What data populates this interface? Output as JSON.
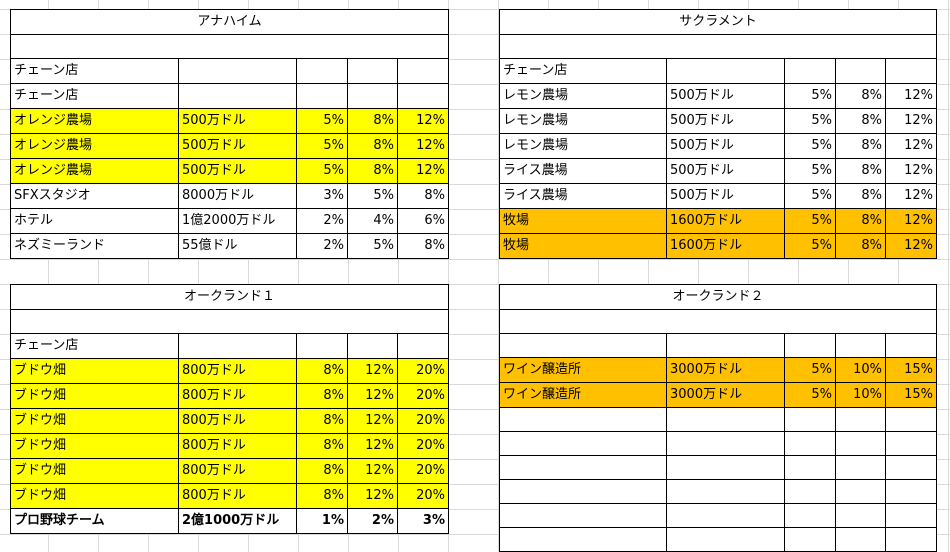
{
  "sheets": {
    "anaheim": {
      "title": "アナハイム",
      "label_rows": [
        "チェーン店",
        "チェーン店"
      ],
      "rows": [
        {
          "name": "オレンジ農場",
          "price": "500万ドル",
          "p1": "5%",
          "p2": "8%",
          "p3": "12%",
          "highlight": "yellow",
          "bold": false
        },
        {
          "name": "オレンジ農場",
          "price": "500万ドル",
          "p1": "5%",
          "p2": "8%",
          "p3": "12%",
          "highlight": "yellow",
          "bold": false
        },
        {
          "name": "オレンジ農場",
          "price": "500万ドル",
          "p1": "5%",
          "p2": "8%",
          "p3": "12%",
          "highlight": "yellow",
          "bold": false
        },
        {
          "name": "SFXスタジオ",
          "price": "8000万ドル",
          "p1": "3%",
          "p2": "5%",
          "p3": "8%",
          "highlight": "",
          "bold": false
        },
        {
          "name": "ホテル",
          "price": "1億2000万ドル",
          "p1": "2%",
          "p2": "4%",
          "p3": "6%",
          "highlight": "",
          "bold": false
        },
        {
          "name": "ネズミーランド",
          "price": "55億ドル",
          "p1": "2%",
          "p2": "5%",
          "p3": "8%",
          "highlight": "",
          "bold": false
        }
      ]
    },
    "sacramento": {
      "title": "サクラメント",
      "label_rows": [
        "チェーン店"
      ],
      "rows": [
        {
          "name": "レモン農場",
          "price": "500万ドル",
          "p1": "5%",
          "p2": "8%",
          "p3": "12%",
          "highlight": "",
          "bold": false
        },
        {
          "name": "レモン農場",
          "price": "500万ドル",
          "p1": "5%",
          "p2": "8%",
          "p3": "12%",
          "highlight": "",
          "bold": false
        },
        {
          "name": "レモン農場",
          "price": "500万ドル",
          "p1": "5%",
          "p2": "8%",
          "p3": "12%",
          "highlight": "",
          "bold": false
        },
        {
          "name": "ライス農場",
          "price": "500万ドル",
          "p1": "5%",
          "p2": "8%",
          "p3": "12%",
          "highlight": "",
          "bold": false
        },
        {
          "name": "ライス農場",
          "price": "500万ドル",
          "p1": "5%",
          "p2": "8%",
          "p3": "12%",
          "highlight": "",
          "bold": false
        },
        {
          "name": "牧場",
          "price": "1600万ドル",
          "p1": "5%",
          "p2": "8%",
          "p3": "12%",
          "highlight": "orange",
          "bold": false
        },
        {
          "name": "牧場",
          "price": "1600万ドル",
          "p1": "5%",
          "p2": "8%",
          "p3": "12%",
          "highlight": "orange",
          "bold": false
        }
      ]
    },
    "oakland1": {
      "title": "オークランド１",
      "label_rows": [
        "チェーン店"
      ],
      "rows": [
        {
          "name": "ブドウ畑",
          "price": "800万ドル",
          "p1": "8%",
          "p2": "12%",
          "p3": "20%",
          "highlight": "yellow",
          "bold": false
        },
        {
          "name": "ブドウ畑",
          "price": "800万ドル",
          "p1": "8%",
          "p2": "12%",
          "p3": "20%",
          "highlight": "yellow",
          "bold": false
        },
        {
          "name": "ブドウ畑",
          "price": "800万ドル",
          "p1": "8%",
          "p2": "12%",
          "p3": "20%",
          "highlight": "yellow",
          "bold": false
        },
        {
          "name": "ブドウ畑",
          "price": "800万ドル",
          "p1": "8%",
          "p2": "12%",
          "p3": "20%",
          "highlight": "yellow",
          "bold": false
        },
        {
          "name": "ブドウ畑",
          "price": "800万ドル",
          "p1": "8%",
          "p2": "12%",
          "p3": "20%",
          "highlight": "yellow",
          "bold": false
        },
        {
          "name": "ブドウ畑",
          "price": "800万ドル",
          "p1": "8%",
          "p2": "12%",
          "p3": "20%",
          "highlight": "yellow",
          "bold": false
        },
        {
          "name": "プロ野球チーム",
          "price": "2億1000万ドル",
          "p1": "1%",
          "p2": "2%",
          "p3": "3%",
          "highlight": "",
          "bold": true
        }
      ]
    },
    "oakland2": {
      "title": "オークランド２",
      "label_rows": [],
      "rows": [
        {
          "name": "ワイン醸造所",
          "price": "3000万ドル",
          "p1": "5%",
          "p2": "10%",
          "p3": "15%",
          "highlight": "orange",
          "bold": false
        },
        {
          "name": "ワイン醸造所",
          "price": "3000万ドル",
          "p1": "5%",
          "p2": "10%",
          "p3": "15%",
          "highlight": "orange",
          "bold": false
        }
      ],
      "empty_rows": 6
    }
  },
  "colors": {
    "yellow": "#ffff00",
    "orange": "#ffc000",
    "grid": "#d9d9d9",
    "border": "#000000"
  }
}
